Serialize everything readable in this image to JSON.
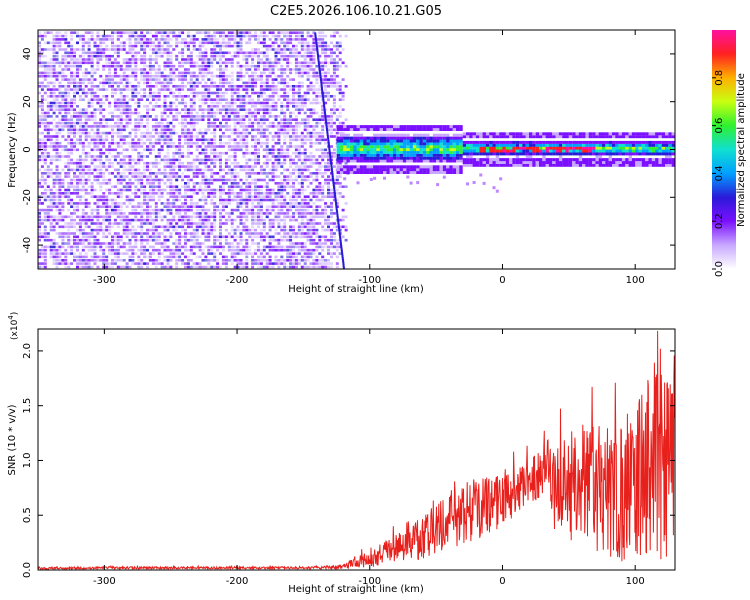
{
  "chart_data": [
    {
      "type": "heatmap",
      "title": "C2E5.2026.106.10.21.G05",
      "xlabel": "Height of straight line (km)",
      "ylabel": "Frequency (Hz)",
      "xlim": [
        -350,
        130
      ],
      "ylim": [
        -50,
        50
      ],
      "x_ticks": [
        -300,
        -200,
        -100,
        0,
        100
      ],
      "x_tick_labels": [
        "-300",
        "-200",
        "-100",
        "0",
        "100"
      ],
      "y_ticks": [
        -40,
        -20,
        0,
        20,
        40
      ],
      "y_tick_labels": [
        "-40",
        "-20",
        "0",
        "20",
        "40"
      ],
      "noise_region_x": [
        -350,
        -120
      ],
      "signal_band_x": [
        -125,
        130
      ],
      "signal_band_frequency_hz": 1,
      "colorbar": {
        "label": "Normalized spectral amplitude",
        "range": [
          0.0,
          1.0
        ],
        "ticks": [
          0.0,
          0.2,
          0.4,
          0.6,
          0.8
        ],
        "tick_labels": [
          "0.0",
          "0.2",
          "0.4",
          "0.6",
          "0.8"
        ],
        "colors": [
          "#ffffff",
          "#c8a8ff",
          "#7a10ff",
          "#2a1ad8",
          "#00a0ff",
          "#10e0d0",
          "#30f030",
          "#c8ff10",
          "#ffb000",
          "#ff2020",
          "#ff10a0"
        ]
      }
    },
    {
      "type": "line",
      "xlabel": "Height of straight line (km)",
      "ylabel": "SNR (10 * v/v)",
      "y_scale_label": "(x10",
      "y_scale_exponent": "4",
      "xlim": [
        -350,
        130
      ],
      "ylim": [
        0.0,
        2.2
      ],
      "x_ticks": [
        -300,
        -200,
        -100,
        0,
        100
      ],
      "x_tick_labels": [
        "-300",
        "-200",
        "-100",
        "0",
        "100"
      ],
      "y_ticks": [
        0.0,
        0.5,
        1.0,
        1.5,
        2.0
      ],
      "y_tick_labels": [
        "0.0",
        "0.5",
        "1.0",
        "1.5",
        "2.0"
      ],
      "color": "#e8201c",
      "series": [
        {
          "name": "SNR",
          "envelope_x": [
            -350,
            -300,
            -250,
            -200,
            -150,
            -120,
            -100,
            -80,
            -60,
            -40,
            -20,
            0,
            20,
            35,
            40,
            60,
            80,
            100,
            115,
            120,
            130
          ],
          "envelope_mean": [
            0.015,
            0.02,
            0.02,
            0.02,
            0.02,
            0.03,
            0.1,
            0.2,
            0.3,
            0.45,
            0.55,
            0.65,
            0.8,
            0.95,
            0.75,
            0.8,
            0.7,
            0.8,
            0.9,
            0.9,
            1.0
          ],
          "envelope_amp": [
            0.01,
            0.01,
            0.01,
            0.01,
            0.01,
            0.02,
            0.08,
            0.12,
            0.2,
            0.25,
            0.3,
            0.25,
            0.2,
            0.25,
            0.45,
            0.55,
            0.6,
            0.75,
            1.1,
            0.9,
            0.8
          ]
        }
      ]
    }
  ]
}
